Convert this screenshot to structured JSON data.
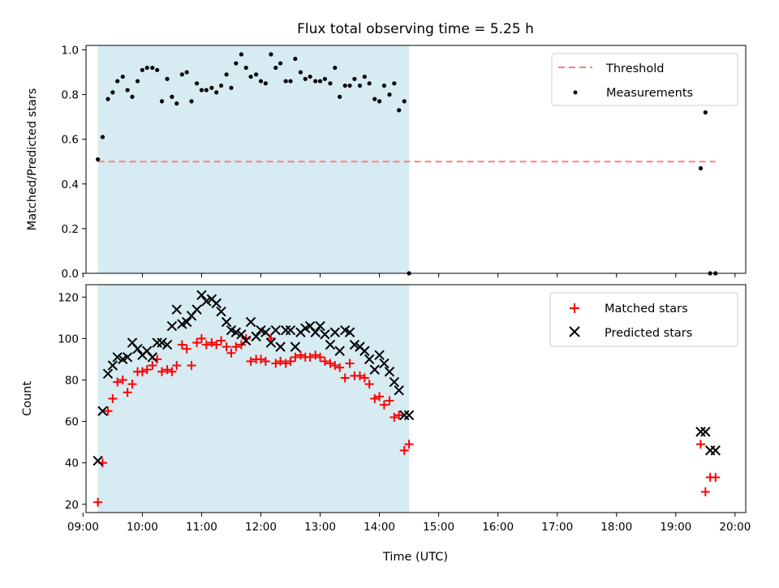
{
  "chart_data": {
    "title": "Flux total observing time = 5.25 h",
    "xlabel": "Time (UTC)",
    "xlim": [
      9.05,
      20.18
    ],
    "xticks": [
      9,
      10,
      11,
      12,
      13,
      14,
      15,
      16,
      17,
      18,
      19,
      20
    ],
    "xtick_labels": [
      "09:00",
      "10:00",
      "11:00",
      "12:00",
      "13:00",
      "14:00",
      "15:00",
      "16:00",
      "17:00",
      "18:00",
      "19:00",
      "20:00"
    ],
    "highlight_span": [
      9.25,
      14.5
    ],
    "highlight_color": "#add8e6",
    "panels": [
      {
        "type": "scatter",
        "ylabel": "Matched/Predicted stars",
        "ylim": [
          0,
          1.02
        ],
        "yticks": [
          0.0,
          0.2,
          0.4,
          0.6,
          0.8,
          1.0
        ],
        "ytick_labels": [
          "0.0",
          "0.2",
          "0.4",
          "0.6",
          "0.8",
          "1.0"
        ],
        "legend": "top-right",
        "threshold": {
          "name": "Threshold",
          "value": 0.5,
          "x": [
            9.25,
            19.67
          ],
          "color": "#ff7f7f"
        },
        "series": [
          {
            "name": "Measurements",
            "marker": "dot",
            "color": "#000000",
            "x": [
              9.25,
              9.33,
              9.42,
              9.5,
              9.58,
              9.67,
              9.75,
              9.83,
              9.92,
              10.0,
              10.08,
              10.17,
              10.25,
              10.33,
              10.42,
              10.5,
              10.58,
              10.67,
              10.75,
              10.83,
              10.92,
              11.0,
              11.08,
              11.17,
              11.25,
              11.33,
              11.42,
              11.5,
              11.58,
              11.67,
              11.75,
              11.83,
              11.92,
              12.0,
              12.08,
              12.17,
              12.25,
              12.33,
              12.42,
              12.5,
              12.58,
              12.67,
              12.75,
              12.83,
              12.92,
              13.0,
              13.08,
              13.17,
              13.25,
              13.33,
              13.42,
              13.5,
              13.58,
              13.67,
              13.75,
              13.83,
              13.92,
              14.0,
              14.08,
              14.17,
              14.25,
              14.33,
              14.42,
              14.5,
              19.42,
              19.5,
              19.58,
              19.67
            ],
            "y": [
              0.51,
              0.61,
              0.78,
              0.81,
              0.86,
              0.88,
              0.82,
              0.79,
              0.86,
              0.91,
              0.92,
              0.92,
              0.91,
              0.77,
              0.87,
              0.79,
              0.76,
              0.89,
              0.9,
              0.77,
              0.85,
              0.82,
              0.82,
              0.83,
              0.81,
              0.84,
              0.89,
              0.83,
              0.94,
              0.98,
              0.92,
              0.88,
              0.89,
              0.86,
              0.85,
              0.98,
              0.92,
              0.94,
              0.86,
              0.86,
              0.96,
              0.9,
              0.87,
              0.88,
              0.86,
              0.86,
              0.87,
              0.85,
              0.92,
              0.79,
              0.84,
              0.84,
              0.87,
              0.84,
              0.88,
              0.85,
              0.78,
              0.77,
              0.84,
              0.8,
              0.85,
              0.73,
              0.77,
              0.0,
              0.47,
              0.72,
              0.0,
              0.0
            ],
            "y_note": "value at x=14.50 and x=19.58 plotted at 0.0"
          }
        ]
      },
      {
        "type": "scatter",
        "ylabel": "Count",
        "ylim": [
          16,
          126
        ],
        "yticks": [
          20,
          40,
          60,
          80,
          100,
          120
        ],
        "ytick_labels": [
          "20",
          "40",
          "60",
          "80",
          "100",
          "120"
        ],
        "legend": "top-right",
        "series": [
          {
            "name": "Matched stars",
            "marker": "plus",
            "color": "#ff0000",
            "x": [
              9.25,
              9.33,
              9.42,
              9.5,
              9.58,
              9.67,
              9.75,
              9.83,
              9.92,
              10.0,
              10.08,
              10.17,
              10.25,
              10.33,
              10.42,
              10.5,
              10.58,
              10.67,
              10.75,
              10.83,
              10.92,
              11.0,
              11.08,
              11.17,
              11.25,
              11.33,
              11.42,
              11.5,
              11.58,
              11.67,
              11.75,
              11.83,
              11.92,
              12.0,
              12.08,
              12.17,
              12.25,
              12.33,
              12.42,
              12.5,
              12.58,
              12.67,
              12.75,
              12.83,
              12.92,
              13.0,
              13.08,
              13.17,
              13.25,
              13.33,
              13.42,
              13.5,
              13.58,
              13.67,
              13.75,
              13.83,
              13.92,
              14.0,
              14.08,
              14.17,
              14.25,
              14.33,
              14.42,
              14.5,
              19.42,
              19.5,
              19.58,
              19.67
            ],
            "y": [
              21,
              40,
              65,
              71,
              79,
              80,
              74,
              78,
              84,
              84,
              85,
              87,
              90,
              84,
              85,
              84,
              87,
              97,
              95,
              87,
              98,
              100,
              97,
              98,
              97,
              99,
              96,
              93,
              96,
              97,
              100,
              89,
              90,
              90,
              89,
              100,
              88,
              89,
              88,
              89,
              91,
              92,
              91,
              91,
              92,
              91,
              89,
              88,
              87,
              86,
              81,
              88,
              82,
              82,
              81,
              78,
              71,
              72,
              68,
              70,
              62,
              63,
              46,
              49,
              49,
              26,
              33,
              33
            ]
          },
          {
            "name": "Predicted stars",
            "marker": "x",
            "color": "#000000",
            "x": [
              9.25,
              9.33,
              9.42,
              9.5,
              9.58,
              9.67,
              9.75,
              9.83,
              9.92,
              10.0,
              10.08,
              10.17,
              10.25,
              10.33,
              10.42,
              10.5,
              10.58,
              10.67,
              10.75,
              10.83,
              10.92,
              11.0,
              11.08,
              11.17,
              11.25,
              11.33,
              11.42,
              11.5,
              11.58,
              11.67,
              11.75,
              11.83,
              11.92,
              12.0,
              12.08,
              12.17,
              12.25,
              12.33,
              12.42,
              12.5,
              12.58,
              12.67,
              12.75,
              12.83,
              12.92,
              13.0,
              13.08,
              13.17,
              13.25,
              13.33,
              13.42,
              13.5,
              13.58,
              13.67,
              13.75,
              13.83,
              13.92,
              14.0,
              14.08,
              14.17,
              14.25,
              14.33,
              14.42,
              14.5,
              19.42,
              19.5,
              19.58,
              19.67
            ],
            "y": [
              41,
              65,
              83,
              87,
              91,
              90,
              91,
              98,
              95,
              92,
              94,
              91,
              98,
              98,
              97,
              106,
              114,
              107,
              108,
              111,
              114,
              121,
              118,
              119,
              117,
              113,
              108,
              104,
              103,
              102,
              99,
              108,
              101,
              104,
              103,
              98,
              104,
              96,
              104,
              104,
              96,
              103,
              105,
              106,
              103,
              106,
              102,
              97,
              103,
              94,
              104,
              103,
              97,
              96,
              94,
              90,
              85,
              92,
              88,
              84,
              79,
              75,
              63,
              63,
              55,
              55,
              46,
              46
            ]
          }
        ]
      }
    ]
  }
}
